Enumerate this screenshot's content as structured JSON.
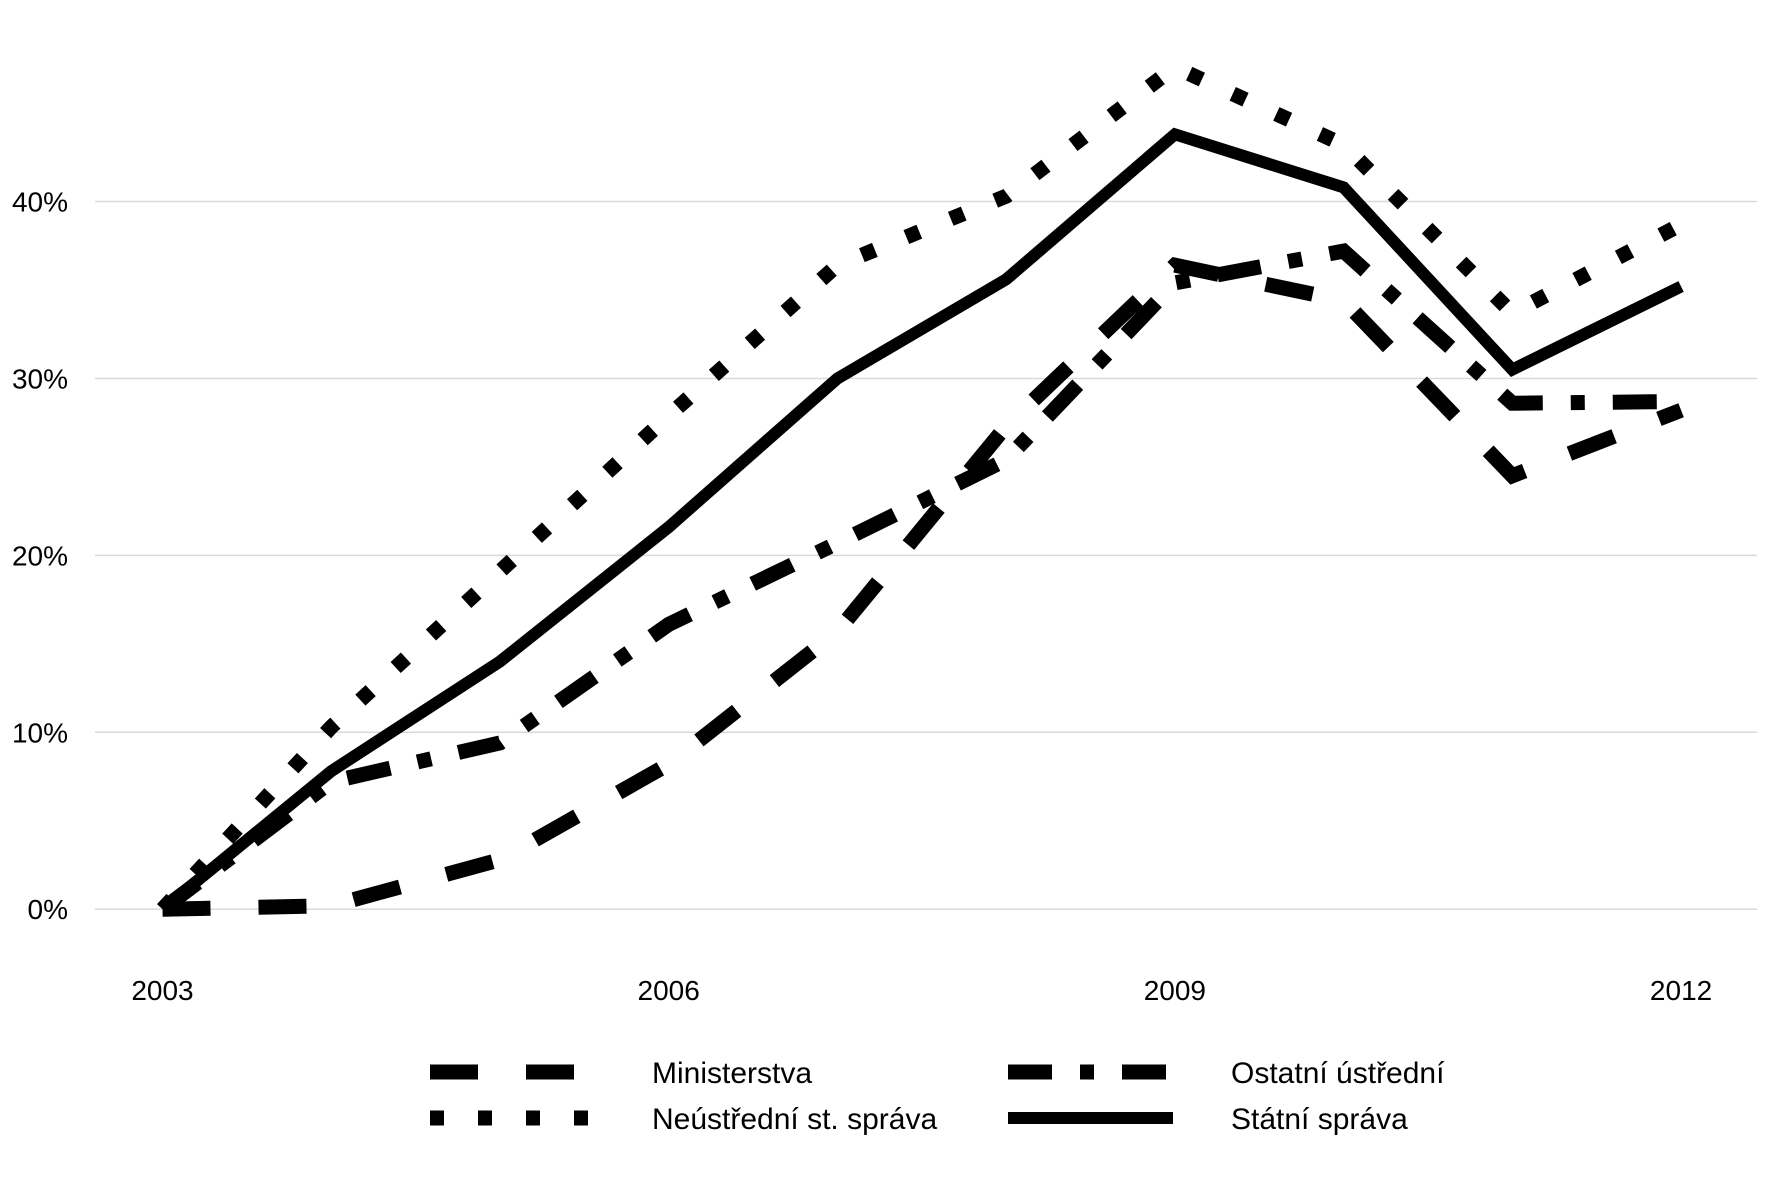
{
  "chart_data": {
    "type": "line",
    "x": [
      2003,
      2004,
      2005,
      2006,
      2007,
      2008,
      2009,
      2010,
      2011,
      2012
    ],
    "x_ticks": [
      "2003",
      "2006",
      "2009",
      "2012"
    ],
    "y_ticks": [
      "0%",
      "10%",
      "20%",
      "30%",
      "40%"
    ],
    "y_tick_values": [
      0,
      10,
      20,
      30,
      40
    ],
    "ylim": [
      -4,
      48
    ],
    "xlim": [
      2002.6,
      2012.45
    ],
    "grid": "horizontal",
    "legend_position": "bottom",
    "series": [
      {
        "name": "Ministerstva",
        "style": "dashed",
        "values": [
          0,
          0.2,
          2.8,
          8.2,
          15.7,
          27.3,
          36.4,
          34.4,
          24.5,
          28.2
        ]
      },
      {
        "name": "Ostatní ústřední",
        "style": "dash-dot",
        "values": [
          0,
          7.2,
          9.4,
          16.1,
          20.7,
          25.4,
          35.4,
          37.2,
          28.6,
          28.7
        ]
      },
      {
        "name": "Neústřední st. správa",
        "style": "dotted",
        "values": [
          0,
          10.3,
          19.1,
          27.9,
          36.4,
          40.3,
          47.6,
          43.2,
          33.7,
          38.7
        ]
      },
      {
        "name": "Státní správa",
        "style": "solid",
        "values": [
          0,
          7.8,
          14.0,
          21.6,
          30.0,
          35.6,
          43.8,
          40.8,
          30.5,
          35.2
        ]
      }
    ],
    "colors": {
      "line": "#000000",
      "grid": "#d9d9d9"
    }
  }
}
